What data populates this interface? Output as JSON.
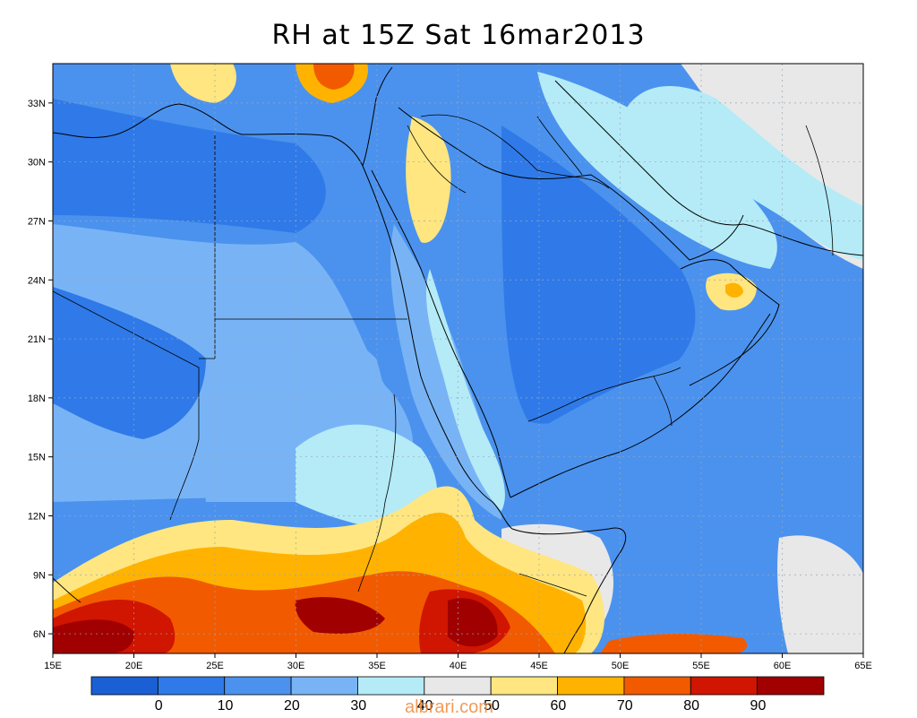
{
  "title": "RH at 15Z Sat 16mar2013",
  "watermark": "albrari.com",
  "map": {
    "lon_range": [
      15,
      65
    ],
    "lat_range": [
      5,
      35
    ],
    "x_ticks": [
      "15E",
      "20E",
      "25E",
      "30E",
      "35E",
      "40E",
      "45E",
      "50E",
      "55E",
      "60E",
      "65E"
    ],
    "y_ticks": [
      "33N",
      "30N",
      "27N",
      "24N",
      "21N",
      "18N",
      "15N",
      "12N",
      "9N",
      "6N"
    ],
    "gridlines": true
  },
  "colorbar": {
    "labels": [
      "0",
      "10",
      "20",
      "30",
      "40",
      "50",
      "60",
      "70",
      "80",
      "90"
    ],
    "colors": [
      "#1a5fd4",
      "#2f7ae8",
      "#4b92ee",
      "#78b4f5",
      "#b4ebf7",
      "#e8e8e8",
      "#ffe680",
      "#ffb300",
      "#f25a00",
      "#d01500",
      "#a00000"
    ]
  },
  "palette": {
    "very_dry": "#2f7ae8",
    "dry": "#4b92ee",
    "moderate": "#78b4f5",
    "light": "#b4ebf7",
    "neutral": "#e8e8e8",
    "pale_yellow": "#ffe680",
    "orange": "#ffb300",
    "red_orange": "#f25a00",
    "red": "#d01500",
    "dark_red": "#a00000"
  }
}
